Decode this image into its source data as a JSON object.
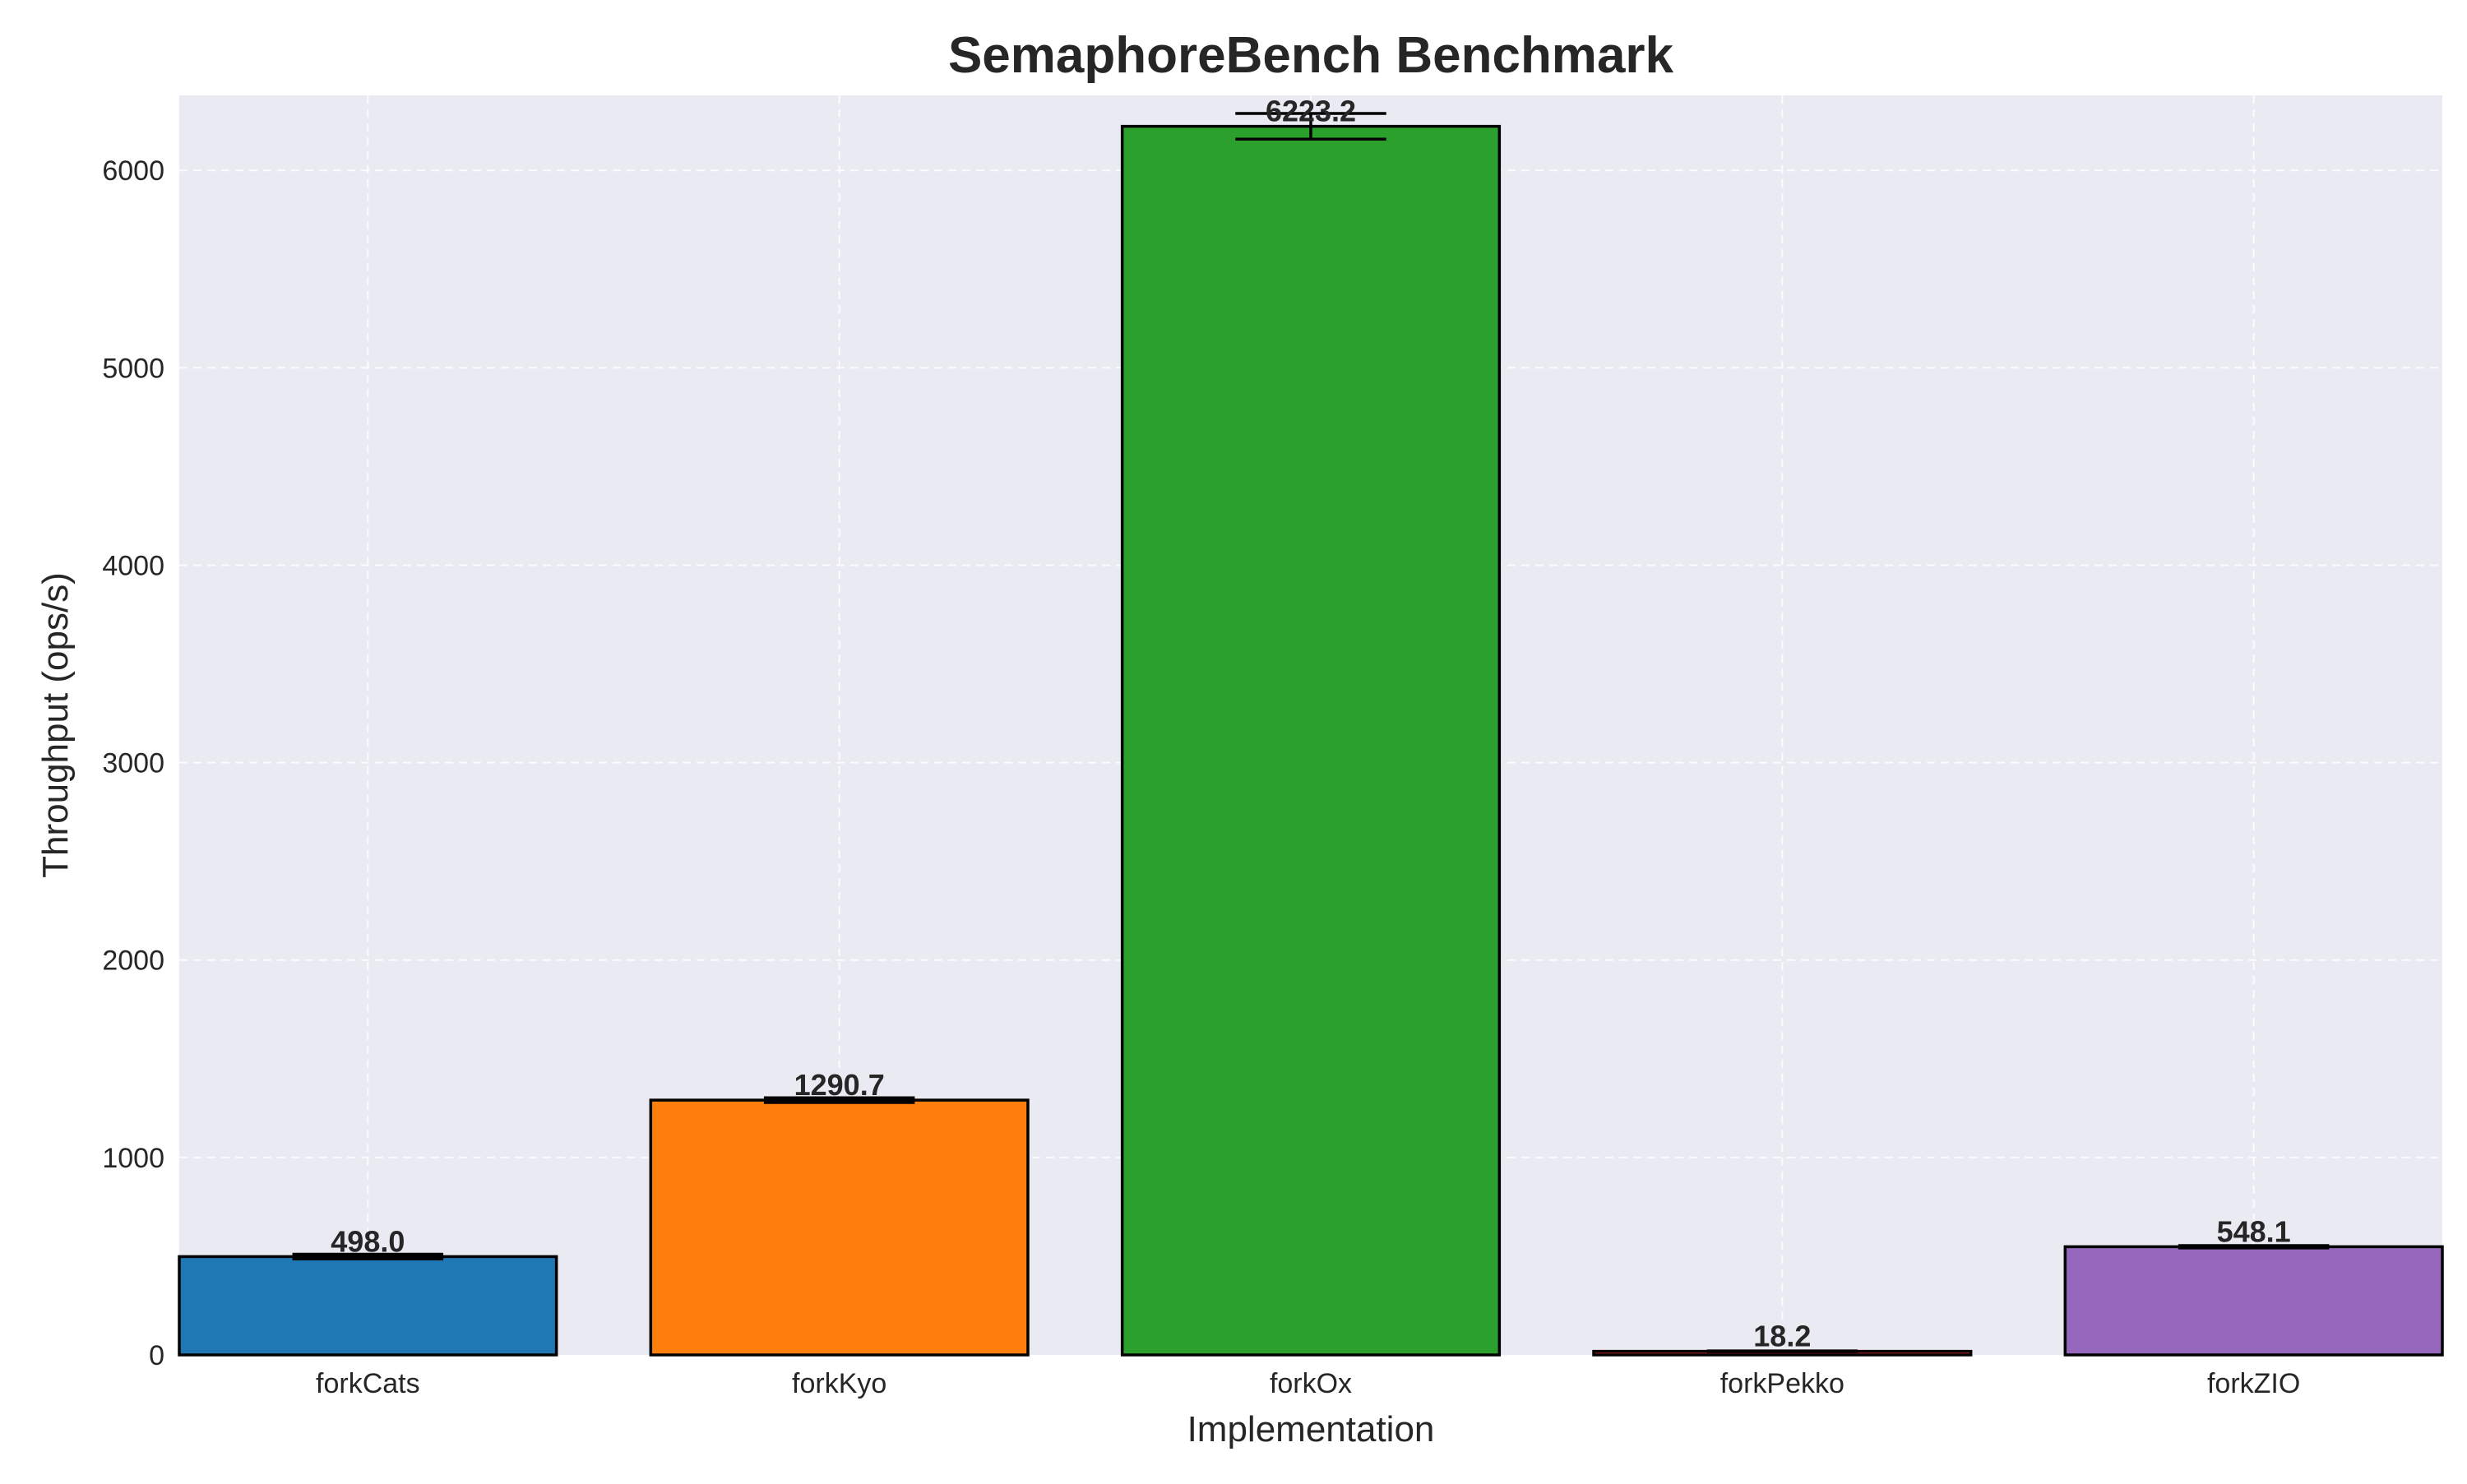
{
  "chart_data": {
    "type": "bar",
    "title": "SemaphoreBench Benchmark",
    "xlabel": "Implementation",
    "ylabel": "Throughput (ops/s)",
    "categories": [
      "forkCats",
      "forkKyo",
      "forkOx",
      "forkPekko",
      "forkZIO"
    ],
    "values": [
      498.0,
      1290.7,
      6223.2,
      18.2,
      548.1
    ],
    "value_labels": [
      "498.0",
      "1290.7",
      "6223.2",
      "18.2",
      "548.1"
    ],
    "errors": [
      12,
      12,
      65,
      2,
      6
    ],
    "colors": [
      "#1f77b4",
      "#ff7f0e",
      "#2ca02c",
      "#d62728",
      "#9467bd"
    ],
    "ylim": [
      0,
      6380
    ],
    "yticks": [
      0,
      1000,
      2000,
      3000,
      4000,
      5000,
      6000
    ],
    "grid": true,
    "legend": "none",
    "background_color": "#eaeaf2"
  }
}
